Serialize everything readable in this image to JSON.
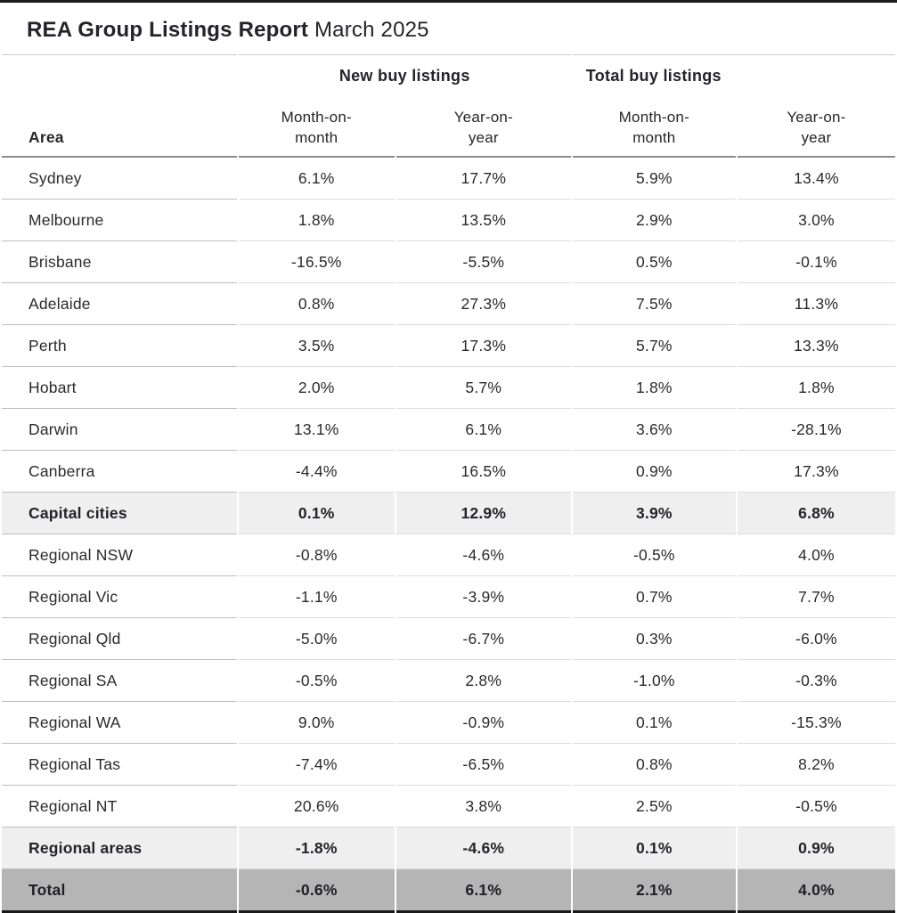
{
  "report": {
    "title_bold": "REA Group Listings Report",
    "title_period": "March 2025"
  },
  "table": {
    "area_header": "Area",
    "group_headers": [
      {
        "label": "New buy listings"
      },
      {
        "label": "Total buy listings"
      }
    ],
    "sub_headers": [
      {
        "line1": "Month-on-",
        "line2": "month"
      },
      {
        "line1": "Year-on-",
        "line2": "year"
      },
      {
        "line1": "Month-on-",
        "line2": "month"
      },
      {
        "line1": "Year-on-",
        "line2": "year"
      }
    ],
    "rows": [
      {
        "label": "Sydney",
        "values": [
          "6.1%",
          "17.7%",
          "5.9%",
          "13.4%"
        ],
        "style": "normal"
      },
      {
        "label": "Melbourne",
        "values": [
          "1.8%",
          "13.5%",
          "2.9%",
          "3.0%"
        ],
        "style": "normal"
      },
      {
        "label": "Brisbane",
        "values": [
          "-16.5%",
          "-5.5%",
          "0.5%",
          "-0.1%"
        ],
        "style": "normal"
      },
      {
        "label": "Adelaide",
        "values": [
          "0.8%",
          "27.3%",
          "7.5%",
          "11.3%"
        ],
        "style": "normal"
      },
      {
        "label": "Perth",
        "values": [
          "3.5%",
          "17.3%",
          "5.7%",
          "13.3%"
        ],
        "style": "normal"
      },
      {
        "label": "Hobart",
        "values": [
          "2.0%",
          "5.7%",
          "1.8%",
          "1.8%"
        ],
        "style": "normal"
      },
      {
        "label": "Darwin",
        "values": [
          "13.1%",
          "6.1%",
          "3.6%",
          "-28.1%"
        ],
        "style": "normal"
      },
      {
        "label": "Canberra",
        "values": [
          "-4.4%",
          "16.5%",
          "0.9%",
          "17.3%"
        ],
        "style": "normal"
      },
      {
        "label": "Capital cities",
        "values": [
          "0.1%",
          "12.9%",
          "3.9%",
          "6.8%"
        ],
        "style": "subtotal"
      },
      {
        "label": "Regional NSW",
        "values": [
          "-0.8%",
          "-4.6%",
          "-0.5%",
          "4.0%"
        ],
        "style": "normal"
      },
      {
        "label": "Regional Vic",
        "values": [
          "-1.1%",
          "-3.9%",
          "0.7%",
          "7.7%"
        ],
        "style": "normal"
      },
      {
        "label": "Regional Qld",
        "values": [
          "-5.0%",
          "-6.7%",
          "0.3%",
          "-6.0%"
        ],
        "style": "normal"
      },
      {
        "label": "Regional SA",
        "values": [
          "-0.5%",
          "2.8%",
          "-1.0%",
          "-0.3%"
        ],
        "style": "normal"
      },
      {
        "label": "Regional WA",
        "values": [
          "9.0%",
          "-0.9%",
          "0.1%",
          "-15.3%"
        ],
        "style": "normal"
      },
      {
        "label": "Regional Tas",
        "values": [
          "-7.4%",
          "-6.5%",
          "0.8%",
          "8.2%"
        ],
        "style": "normal"
      },
      {
        "label": "Regional NT",
        "values": [
          "20.6%",
          "3.8%",
          "2.5%",
          "-0.5%"
        ],
        "style": "normal"
      },
      {
        "label": "Regional areas",
        "values": [
          "-1.8%",
          "-4.6%",
          "0.1%",
          "0.9%"
        ],
        "style": "subtotal"
      },
      {
        "label": "Total",
        "values": [
          "-0.6%",
          "6.1%",
          "2.1%",
          "4.0%"
        ],
        "style": "total"
      }
    ]
  },
  "colors": {
    "subtotal_bg": "#efefef",
    "total_bg": "#b5b5b5",
    "frame_border": "#1a1a1a",
    "row_border": "#dcdcdc",
    "label_col_border": "#bdbdbd",
    "header_border": "#8c8c8c",
    "text": "#27272b"
  },
  "chart_data": {
    "type": "table",
    "title": "REA Group Listings Report March 2025",
    "column_groups": [
      "New buy listings",
      "Total buy listings"
    ],
    "columns": [
      "Area",
      "New buy listings Month-on-month",
      "New buy listings Year-on-year",
      "Total buy listings Month-on-month",
      "Total buy listings Year-on-year"
    ],
    "unit": "%",
    "rows": [
      {
        "area": "Sydney",
        "new_mom": 6.1,
        "new_yoy": 17.7,
        "total_mom": 5.9,
        "total_yoy": 13.4,
        "emphasis": "none"
      },
      {
        "area": "Melbourne",
        "new_mom": 1.8,
        "new_yoy": 13.5,
        "total_mom": 2.9,
        "total_yoy": 3.0,
        "emphasis": "none"
      },
      {
        "area": "Brisbane",
        "new_mom": -16.5,
        "new_yoy": -5.5,
        "total_mom": 0.5,
        "total_yoy": -0.1,
        "emphasis": "none"
      },
      {
        "area": "Adelaide",
        "new_mom": 0.8,
        "new_yoy": 27.3,
        "total_mom": 7.5,
        "total_yoy": 11.3,
        "emphasis": "none"
      },
      {
        "area": "Perth",
        "new_mom": 3.5,
        "new_yoy": 17.3,
        "total_mom": 5.7,
        "total_yoy": 13.3,
        "emphasis": "none"
      },
      {
        "area": "Hobart",
        "new_mom": 2.0,
        "new_yoy": 5.7,
        "total_mom": 1.8,
        "total_yoy": 1.8,
        "emphasis": "none"
      },
      {
        "area": "Darwin",
        "new_mom": 13.1,
        "new_yoy": 6.1,
        "total_mom": 3.6,
        "total_yoy": -28.1,
        "emphasis": "none"
      },
      {
        "area": "Canberra",
        "new_mom": -4.4,
        "new_yoy": 16.5,
        "total_mom": 0.9,
        "total_yoy": 17.3,
        "emphasis": "none"
      },
      {
        "area": "Capital cities",
        "new_mom": 0.1,
        "new_yoy": 12.9,
        "total_mom": 3.9,
        "total_yoy": 6.8,
        "emphasis": "subtotal"
      },
      {
        "area": "Regional NSW",
        "new_mom": -0.8,
        "new_yoy": -4.6,
        "total_mom": -0.5,
        "total_yoy": 4.0,
        "emphasis": "none"
      },
      {
        "area": "Regional Vic",
        "new_mom": -1.1,
        "new_yoy": -3.9,
        "total_mom": 0.7,
        "total_yoy": 7.7,
        "emphasis": "none"
      },
      {
        "area": "Regional Qld",
        "new_mom": -5.0,
        "new_yoy": -6.7,
        "total_mom": 0.3,
        "total_yoy": -6.0,
        "emphasis": "none"
      },
      {
        "area": "Regional SA",
        "new_mom": -0.5,
        "new_yoy": 2.8,
        "total_mom": -1.0,
        "total_yoy": -0.3,
        "emphasis": "none"
      },
      {
        "area": "Regional WA",
        "new_mom": 9.0,
        "new_yoy": -0.9,
        "total_mom": 0.1,
        "total_yoy": -15.3,
        "emphasis": "none"
      },
      {
        "area": "Regional Tas",
        "new_mom": -7.4,
        "new_yoy": -6.5,
        "total_mom": 0.8,
        "total_yoy": 8.2,
        "emphasis": "none"
      },
      {
        "area": "Regional NT",
        "new_mom": 20.6,
        "new_yoy": 3.8,
        "total_mom": 2.5,
        "total_yoy": -0.5,
        "emphasis": "none"
      },
      {
        "area": "Regional areas",
        "new_mom": -1.8,
        "new_yoy": -4.6,
        "total_mom": 0.1,
        "total_yoy": 0.9,
        "emphasis": "subtotal"
      },
      {
        "area": "Total",
        "new_mom": -0.6,
        "new_yoy": 6.1,
        "total_mom": 2.1,
        "total_yoy": 4.0,
        "emphasis": "total"
      }
    ]
  }
}
